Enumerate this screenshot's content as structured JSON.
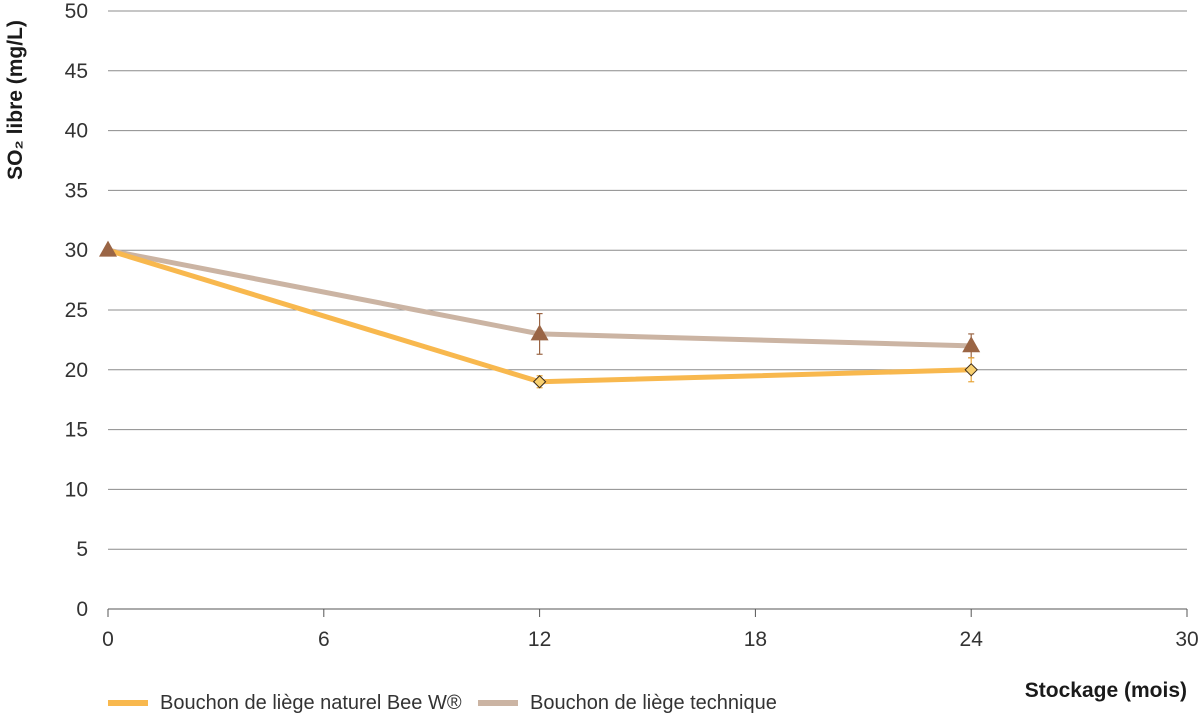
{
  "chart_data": {
    "type": "line",
    "title": "",
    "xlabel": "Stockage (mois)",
    "ylabel": "SO₂ libre (mg/L)",
    "xlim": [
      0,
      30
    ],
    "ylim": [
      0,
      50
    ],
    "xticks": [
      0,
      6,
      12,
      18,
      24,
      30
    ],
    "yticks": [
      0,
      5,
      10,
      15,
      20,
      25,
      30,
      35,
      40,
      45,
      50
    ],
    "grid": "horizontal",
    "legend_position": "bottom-left",
    "series": [
      {
        "name": "Bouchon de liège naturel Bee W®",
        "color": "#f8b84e",
        "marker": "diamond",
        "marker_color": "#f8d070",
        "x": [
          0,
          12,
          24
        ],
        "y": [
          30,
          19,
          20
        ],
        "error": [
          0,
          0.5,
          1
        ]
      },
      {
        "name": "Bouchon de liège technique",
        "color": "#cbb4a3",
        "marker": "triangle",
        "marker_color": "#9a6545",
        "x": [
          0,
          12,
          24
        ],
        "y": [
          30,
          23,
          22
        ],
        "error": [
          0,
          1.7,
          1
        ]
      }
    ]
  }
}
